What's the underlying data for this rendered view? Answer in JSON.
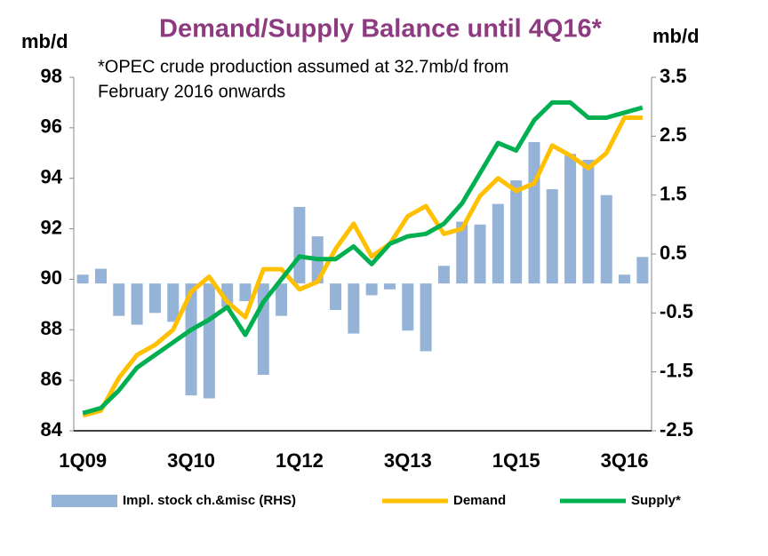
{
  "chart_data": {
    "type": "combo",
    "title": "Demand/Supply Balance until 4Q16*",
    "annotation": [
      "*OPEC crude production assumed at 32.7mb/d from",
      "February 2016 onwards"
    ],
    "ylabel": "mb/d",
    "y2label": "mb/d",
    "categories": [
      "1Q09",
      null,
      null,
      null,
      null,
      null,
      "3Q10",
      null,
      null,
      null,
      null,
      null,
      "1Q12",
      null,
      null,
      null,
      null,
      null,
      "3Q13",
      null,
      null,
      null,
      null,
      null,
      "1Q15",
      null,
      null,
      null,
      null,
      null,
      "3Q16",
      null
    ],
    "ylim": [
      84,
      98
    ],
    "yticks": [
      84,
      86,
      88,
      90,
      92,
      94,
      96,
      98
    ],
    "y2lim": [
      -2.5,
      3.5
    ],
    "y2ticks": [
      -2.5,
      -1.5,
      -0.5,
      0.5,
      1.5,
      2.5,
      3.5
    ],
    "series": [
      {
        "name": "Impl. stock ch.&misc (RHS)",
        "type": "bar",
        "axis": "y2",
        "color": "#95b3d7",
        "values": [
          0.15,
          0.25,
          -0.55,
          -0.7,
          -0.5,
          -0.65,
          -1.9,
          -1.95,
          -0.4,
          -0.3,
          -1.55,
          -0.55,
          1.3,
          0.8,
          -0.45,
          -0.85,
          -0.2,
          -0.1,
          -0.8,
          -1.15,
          0.3,
          1.05,
          1.0,
          1.35,
          1.75,
          2.4,
          1.6,
          2.2,
          2.1,
          1.5,
          0.15,
          0.45
        ]
      },
      {
        "name": "Demand",
        "type": "line",
        "color": "#ffc000",
        "values": [
          84.6,
          84.8,
          86.1,
          87.0,
          87.4,
          88.0,
          89.5,
          90.1,
          89.1,
          88.5,
          90.4,
          90.4,
          89.6,
          89.9,
          91.2,
          92.2,
          90.9,
          91.4,
          92.5,
          92.9,
          91.8,
          92.0,
          93.3,
          94.0,
          93.5,
          93.8,
          95.3,
          94.9,
          94.4,
          95.0,
          96.4,
          96.4
        ]
      },
      {
        "name": "Supply*",
        "type": "line",
        "color": "#00b050",
        "values": [
          84.7,
          84.9,
          85.6,
          86.5,
          87.0,
          87.5,
          88.0,
          88.4,
          88.9,
          87.8,
          89.1,
          90.0,
          90.9,
          90.8,
          90.8,
          91.3,
          90.6,
          91.4,
          91.7,
          91.8,
          92.2,
          93.0,
          94.2,
          95.4,
          95.1,
          96.3,
          97.0,
          97.0,
          96.4,
          96.4,
          96.6,
          96.8
        ]
      }
    ]
  }
}
